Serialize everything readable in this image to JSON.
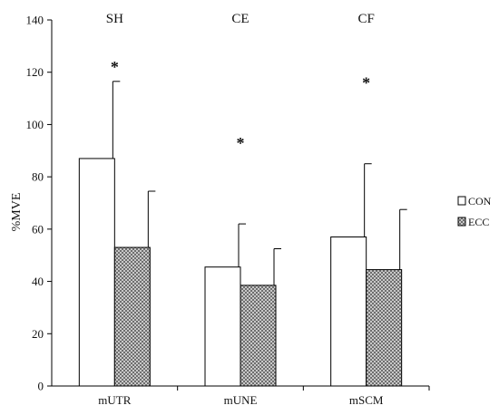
{
  "chart_data": {
    "type": "bar",
    "title": "",
    "xlabel": "",
    "ylabel": "%MVE",
    "ylim": [
      0,
      140
    ],
    "yticks": [
      0,
      20,
      40,
      60,
      80,
      100,
      120,
      140
    ],
    "categories": [
      "mUTR",
      "mUNE",
      "mSCM"
    ],
    "group_labels": [
      "SH",
      "CE",
      "CF"
    ],
    "series": [
      {
        "name": "CON",
        "values": [
          87,
          45.5,
          57
        ],
        "errors": [
          29.5,
          16.5,
          28
        ],
        "fill": "#ffffff",
        "pattern": "none"
      },
      {
        "name": "ECC",
        "values": [
          53,
          38.5,
          44.5
        ],
        "errors": [
          21.5,
          14,
          23
        ],
        "fill": "#9a9a9a",
        "pattern": "checker"
      }
    ],
    "significance": [
      {
        "category_index": 0,
        "symbol": "*",
        "y": 124
      },
      {
        "category_index": 1,
        "symbol": "*",
        "y": 95
      },
      {
        "category_index": 2,
        "symbol": "*",
        "y": 118
      }
    ],
    "legend_position": "right",
    "grid": false
  },
  "colors": {
    "axis": "#000000",
    "bar_outline": "#000000",
    "con_fill": "#ffffff",
    "ecc_pattern_dark": "#6e6e6e",
    "ecc_pattern_light": "#c8c8c8"
  }
}
